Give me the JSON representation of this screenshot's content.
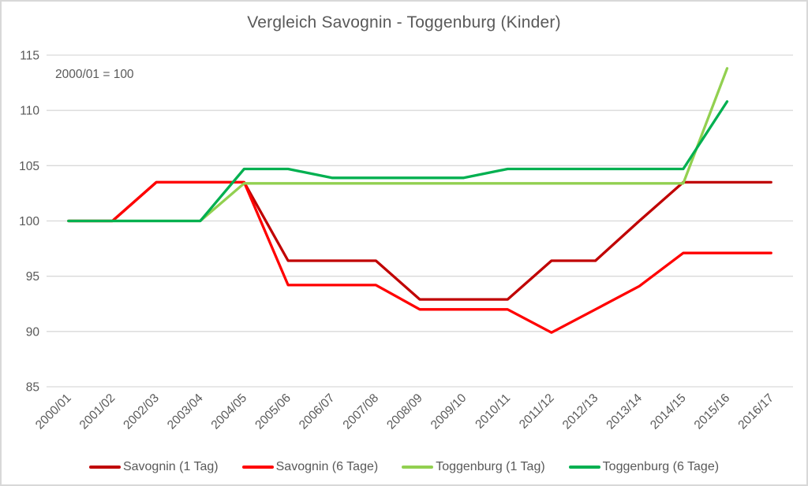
{
  "window": {
    "background": "#FFFFFF",
    "border_color": "#D8D8D8",
    "text_color": "#595959",
    "grid_color": "#D9D9D9"
  },
  "chart_data": {
    "type": "line",
    "title": "Vergleich Savognin - Toggenburg (Kinder)",
    "annotation": "2000/01 = 100",
    "categories": [
      "2000/01",
      "2001/02",
      "2002/03",
      "2003/04",
      "2004/05",
      "2005/06",
      "2006/07",
      "2007/08",
      "2008/09",
      "2009/10",
      "2010/11",
      "2011/12",
      "2012/13",
      "2013/14",
      "2014/15",
      "2015/16",
      "2016/17"
    ],
    "series": [
      {
        "name": "Savognin (1 Tag)",
        "color": "#C00000",
        "values": [
          100,
          100,
          103.5,
          103.5,
          103.5,
          96.4,
          96.4,
          96.4,
          92.9,
          92.9,
          92.9,
          96.4,
          96.4,
          100,
          103.5,
          103.5,
          103.5
        ]
      },
      {
        "name": "Savognin (6 Tage)",
        "color": "#FF0000",
        "values": [
          100,
          100,
          103.5,
          103.5,
          103.5,
          94.2,
          94.2,
          94.2,
          92,
          92,
          92,
          89.9,
          92,
          94.1,
          97.1,
          97.1,
          97.1
        ]
      },
      {
        "name": "Toggenburg (1 Tag)",
        "color": "#92D050",
        "values": [
          100,
          100,
          100,
          100,
          103.4,
          103.4,
          103.4,
          103.4,
          103.4,
          103.4,
          103.4,
          103.4,
          103.4,
          103.4,
          103.4,
          113.8,
          null
        ]
      },
      {
        "name": "Toggenburg (6 Tage)",
        "color": "#00B050",
        "values": [
          100,
          100,
          100,
          100,
          104.7,
          104.7,
          103.9,
          103.9,
          103.9,
          103.9,
          104.7,
          104.7,
          104.7,
          104.7,
          104.7,
          110.8,
          null
        ]
      }
    ],
    "xlabel": "",
    "ylabel": "",
    "ylim": [
      85,
      115
    ],
    "y_ticks": [
      115,
      110,
      105,
      100,
      95,
      90,
      85
    ],
    "grid": true,
    "legend_position": "bottom"
  }
}
